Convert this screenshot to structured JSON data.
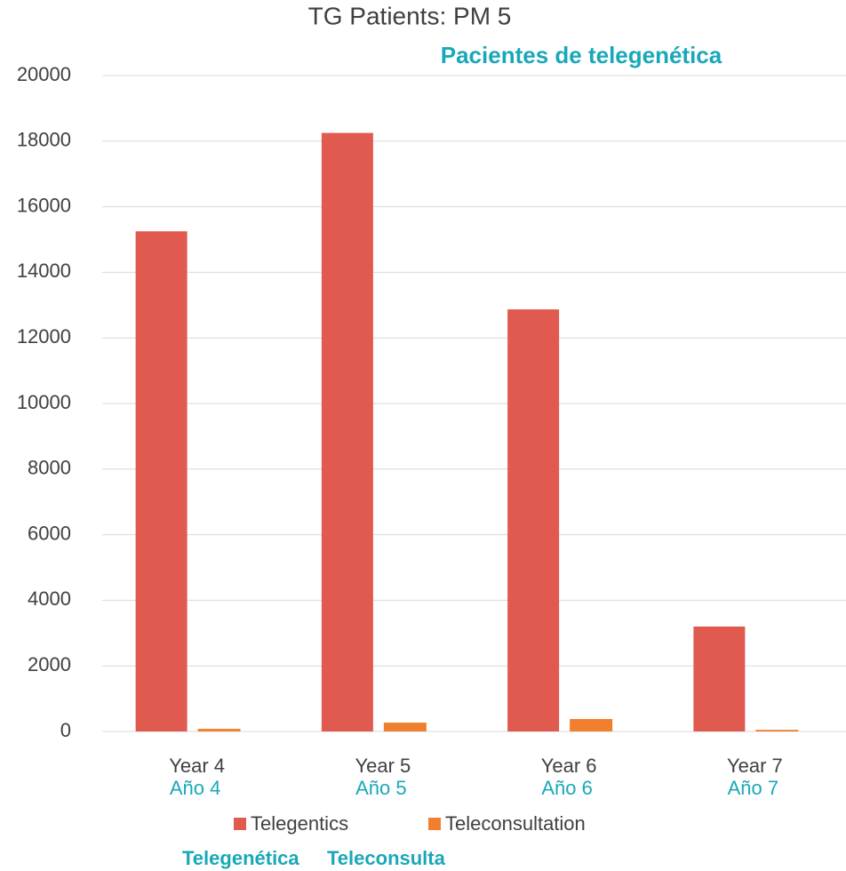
{
  "chart_data": {
    "type": "bar",
    "title": "TG Patients: PM 5",
    "subtitle": "Pacientes de telegenética",
    "categories": [
      "Year 4",
      "Year 5",
      "Year 6",
      "Year 7"
    ],
    "categories_es": [
      "Año 4",
      "Año 5",
      "Año 6",
      "Año 7"
    ],
    "series": [
      {
        "name": "Telegentics",
        "name_es": "Telegenética",
        "color": "#e05a4f",
        "values": [
          15250,
          18250,
          12870,
          3200
        ]
      },
      {
        "name": "Teleconsultation",
        "name_es": "Teleconsulta",
        "color": "#f08030",
        "values": [
          80,
          270,
          380,
          50
        ]
      }
    ],
    "ylim": [
      0,
      20000
    ],
    "yticks": [
      0,
      2000,
      4000,
      6000,
      8000,
      10000,
      12000,
      14000,
      16000,
      18000,
      20000
    ],
    "grid": true,
    "legend": "bottom"
  }
}
